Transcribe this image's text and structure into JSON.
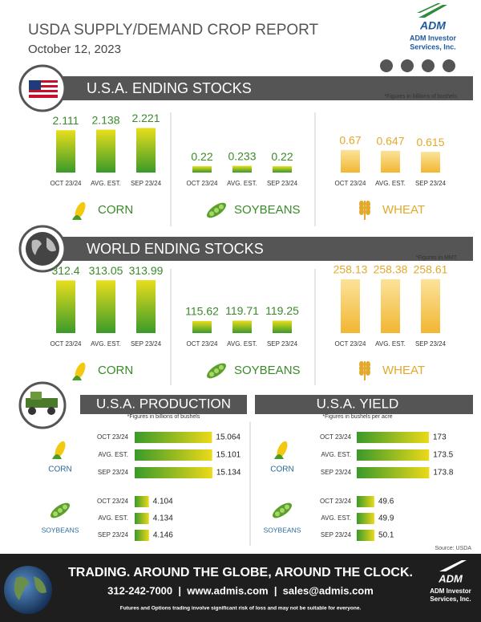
{
  "header": {
    "title": "USDA SUPPLY/DEMAND CROP REPORT",
    "date": "October 12, 2023"
  },
  "brand": {
    "name": "ADM",
    "line1": "ADM Investor",
    "line2": "Services, Inc."
  },
  "sections": [
    {
      "title": "U.S.A. ENDING STOCKS",
      "note": "*Figures in billions of bushels",
      "categories": [
        "OCT 23/24",
        "AVG. EST.",
        "SEP 23/24"
      ],
      "crops": [
        {
          "name": "CORN",
          "values": [
            2.111,
            2.138,
            2.221
          ]
        },
        {
          "name": "SOYBEANS",
          "values": [
            0.22,
            0.233,
            0.22
          ]
        },
        {
          "name": "WHEAT",
          "values": [
            0.67,
            0.647,
            0.615
          ]
        }
      ]
    },
    {
      "title": "WORLD ENDING STOCKS",
      "note": "*Figures in MMT",
      "categories": [
        "OCT 23/24",
        "AVG. EST.",
        "SEP 23/24"
      ],
      "crops": [
        {
          "name": "CORN",
          "values": [
            312.4,
            313.05,
            313.99
          ]
        },
        {
          "name": "SOYBEANS",
          "values": [
            115.62,
            119.71,
            119.25
          ]
        },
        {
          "name": "WHEAT",
          "values": [
            258.13,
            258.38,
            258.61
          ]
        }
      ]
    }
  ],
  "production": {
    "title": "U.S.A. PRODUCTION",
    "note": "*Figures in billions of bushels",
    "categories": [
      "OCT 23/24",
      "AVG. EST.",
      "SEP 23/24"
    ],
    "crops": [
      {
        "name": "CORN",
        "values": [
          15.064,
          15.101,
          15.134
        ]
      },
      {
        "name": "SOYBEANS",
        "values": [
          4.104,
          4.134,
          4.146
        ]
      }
    ]
  },
  "yield": {
    "title": "U.S.A. YIELD",
    "note": "*Figures in bushels per acre",
    "categories": [
      "OCT 23/24",
      "AVG. EST.",
      "SEP 23/24"
    ],
    "crops": [
      {
        "name": "CORN",
        "values": [
          173,
          173.5,
          173.8
        ]
      },
      {
        "name": "SOYBEANS",
        "values": [
          49.6,
          49.9,
          50.1
        ]
      }
    ]
  },
  "source": "Source: USDA",
  "footer": {
    "slogan": "TRADING. AROUND THE GLOBE, AROUND THE CLOCK.",
    "contact": "312-242-7000  |  www.admis.com  |  sales@admis.com",
    "disclaimer": "Futures and Options trading involve significant risk of loss and may not be suitable for everyone."
  }
}
